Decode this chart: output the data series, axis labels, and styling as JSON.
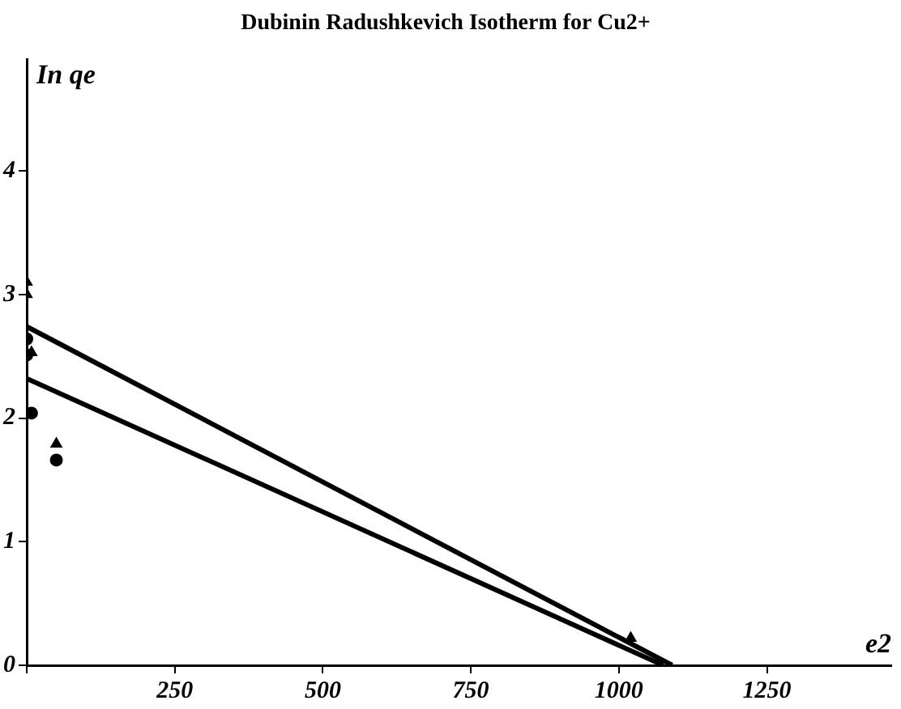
{
  "chart_data": {
    "type": "scatter",
    "title": "Dubinin Radushkevich Isotherm for Cu2+",
    "xlabel": "e2",
    "ylabel": "In qe",
    "xlim": [
      0,
      1460
    ],
    "xticks": [
      {
        "value": 0,
        "label": null
      },
      250,
      500,
      750,
      1000,
      1250
    ],
    "ylim": [
      0,
      4.9
    ],
    "yticks": [
      0,
      1,
      2,
      3,
      4
    ],
    "grid": false,
    "legend": false,
    "series": [
      {
        "marker": "circle",
        "color": "#000000",
        "x": [
          0,
          0,
          8,
          50
        ],
        "values": [
          2.64,
          2.51,
          2.04,
          1.66
        ]
      },
      {
        "marker": "triangle",
        "color": "#000000",
        "x": [
          0,
          0,
          8,
          50,
          1020
        ],
        "values": [
          3.1,
          3.0,
          2.53,
          1.79,
          0.22
        ]
      },
      {
        "type": "line",
        "marker": "none",
        "color": "#000000",
        "x": [
          0,
          1090
        ],
        "values": [
          2.74,
          0
        ]
      },
      {
        "type": "line",
        "marker": "none",
        "color": "#000000",
        "x": [
          0,
          1075
        ],
        "values": [
          2.32,
          0
        ]
      }
    ]
  }
}
